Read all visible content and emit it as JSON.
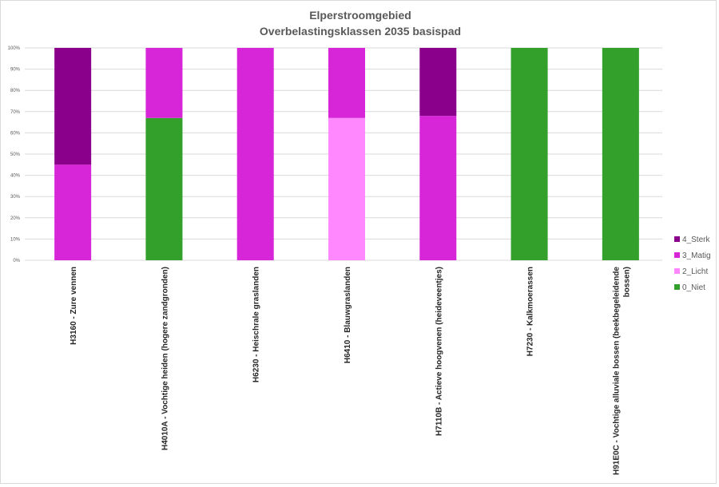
{
  "chart_data": {
    "type": "bar",
    "stacked": true,
    "normalized": true,
    "title": "Elperstroomgebied",
    "subtitle": "Overbelastingsklassen 2035 basispad",
    "xlabel": "",
    "ylabel": "",
    "ylim": [
      0,
      100
    ],
    "y_ticks": [
      "0%",
      "10%",
      "20%",
      "30%",
      "40%",
      "50%",
      "60%",
      "70%",
      "80%",
      "90%",
      "100%"
    ],
    "grid": true,
    "legend_position": "right",
    "categories": [
      [
        "H3160 - Zure vennen"
      ],
      [
        "H4010A - Vochtige heiden (hogere zandgronden)"
      ],
      [
        "H6230 - Heischrale graslanden"
      ],
      [
        "H6410 - Blauwgraslanden"
      ],
      [
        "H7110B - Actieve hoogvenen (heideveentjes)"
      ],
      [
        "H7230 - Kalkmoerassen"
      ],
      [
        "H91E0C - Vochtige alluviale bossen (beekbegeleidende",
        "bossen)"
      ]
    ],
    "series": [
      {
        "name": "0_Niet",
        "color": "#33a02c",
        "values": [
          0,
          67,
          0,
          0,
          0,
          100,
          100
        ]
      },
      {
        "name": "2_Licht",
        "color": "#ff88ff",
        "values": [
          0,
          0,
          0,
          67,
          0,
          0,
          0
        ]
      },
      {
        "name": "3_Matig",
        "color": "#d726d7",
        "values": [
          45,
          33,
          100,
          33,
          68,
          0,
          0
        ]
      },
      {
        "name": "4_Sterk",
        "color": "#8b008b",
        "values": [
          55,
          0,
          0,
          0,
          32,
          0,
          0
        ]
      }
    ],
    "legend_order": [
      "4_Sterk",
      "3_Matig",
      "2_Licht",
      "0_Niet"
    ],
    "colors": {
      "grid": "#d9d9d9",
      "text": "#595959",
      "label": "#262626"
    }
  }
}
